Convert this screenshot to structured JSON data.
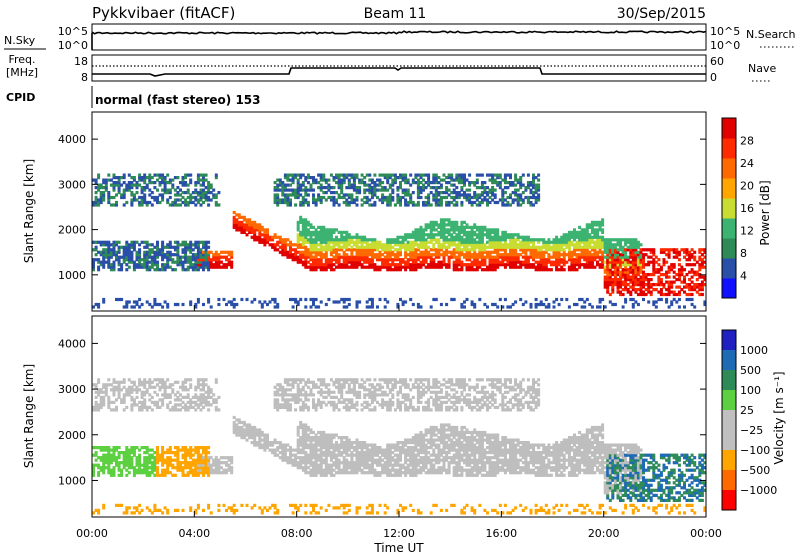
{
  "header": {
    "station": "Pykkvibaer (fitACF)",
    "beam": "Beam 11",
    "date": "30/Sep/2015"
  },
  "strip_sky": {
    "label": "N.Sky",
    "label_right": "N.Search",
    "left_ticks": [
      "10^5",
      "10^0"
    ],
    "right_ticks": [
      "10^5",
      "10^0"
    ]
  },
  "strip_freq": {
    "label_line1": "Freq.",
    "label_line2": "[MHz]",
    "left_ticks": [
      "18",
      "8"
    ],
    "right_label": "Nave",
    "right_ticks": [
      "60",
      "0"
    ]
  },
  "strip_cpid": {
    "label": "CPID",
    "value": "normal (fast stereo) 153"
  },
  "colors": {
    "power": [
      "#1010ff",
      "#2a4fa8",
      "#2e8b57",
      "#3cb371",
      "#c8dc32",
      "#ffa500",
      "#ff6a00",
      "#ff2a00",
      "#e00000"
    ],
    "velocity": [
      "#2020c0",
      "#1e6ab4",
      "#2e8b57",
      "#5cd040",
      "#c0c0c0",
      "#c0c0c0",
      "#ffa500",
      "#ff6a00",
      "#ff0000"
    ],
    "ground_scatter": "#bebebe"
  },
  "chart_data": [
    {
      "type": "heatmap",
      "title": "",
      "ylabel": "Slant Range [km]",
      "y_ticks": [
        "1000",
        "2000",
        "3000",
        "4000"
      ],
      "ylim": [
        200,
        4600
      ],
      "xlim": [
        0,
        24
      ],
      "colorbar": {
        "label": "Power [dB]",
        "ticks": [
          "4",
          "8",
          "12",
          "16",
          "20",
          "24",
          "28"
        ],
        "range": [
          0,
          32
        ]
      }
    },
    {
      "type": "heatmap",
      "title": "",
      "xlabel": "Time UT",
      "ylabel": "Slant Range [km]",
      "y_ticks": [
        "1000",
        "2000",
        "3000",
        "4000"
      ],
      "x_ticks": [
        "00:00",
        "04:00",
        "08:00",
        "12:00",
        "16:00",
        "20:00",
        "00:00"
      ],
      "ylim": [
        200,
        4600
      ],
      "xlim": [
        0,
        24
      ],
      "colorbar": {
        "label": "Velocity [m s⁻¹]",
        "ticks": [
          "1000",
          "500",
          "100",
          "25",
          "−25",
          "−100",
          "−500",
          "−1000"
        ],
        "range": [
          -1000,
          1000
        ]
      }
    }
  ]
}
